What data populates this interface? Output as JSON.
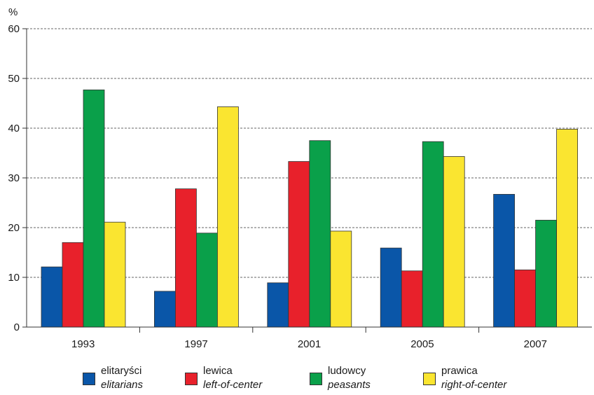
{
  "chart_data": {
    "type": "bar",
    "ylabel": "%",
    "ylim": [
      0,
      60
    ],
    "yticks": [
      "0",
      "10",
      "20",
      "30",
      "40",
      "50",
      "60"
    ],
    "categories": [
      "1993",
      "1997",
      "2001",
      "2005",
      "2007"
    ],
    "grid": "horizontal-dashed",
    "legend_position": "bottom",
    "series": [
      {
        "name": "elitaryści",
        "name_en": "elitarians",
        "color": "#0a56a8",
        "values": [
          12.1,
          7.2,
          8.9,
          15.9,
          26.7
        ]
      },
      {
        "name": "lewica",
        "name_en": "left-of-center",
        "color": "#e8212b",
        "values": [
          17.0,
          27.8,
          33.3,
          11.3,
          11.5
        ]
      },
      {
        "name": "ludowcy",
        "name_en": "peasants",
        "color": "#0aa04a",
        "values": [
          47.7,
          18.9,
          37.5,
          37.3,
          21.5
        ]
      },
      {
        "name": "prawica",
        "name_en": "right-of-center",
        "color": "#fae530",
        "values": [
          21.1,
          44.3,
          19.3,
          34.3,
          39.8
        ]
      }
    ]
  }
}
